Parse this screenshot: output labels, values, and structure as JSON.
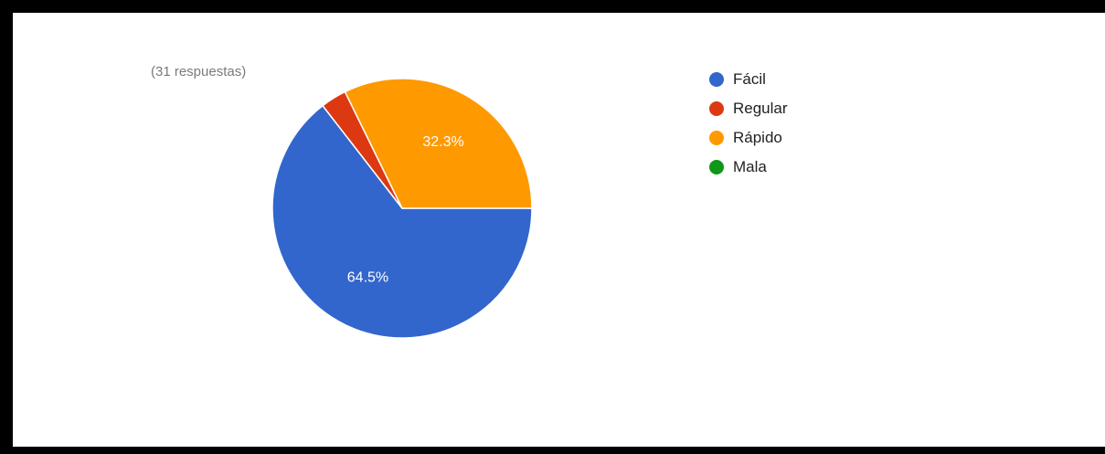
{
  "responses_text": "(31 respuestas)",
  "chart_data": {
    "type": "pie",
    "total_responses": 31,
    "slices": [
      {
        "name": "Fácil",
        "value": 20,
        "percent_label": "64.5%",
        "color": "#3366cc"
      },
      {
        "name": "Regular",
        "value": 1,
        "percent_label": "",
        "color": "#dc3912"
      },
      {
        "name": "Rápido",
        "value": 10,
        "percent_label": "32.3%",
        "color": "#ff9900"
      },
      {
        "name": "Mala",
        "value": 0,
        "percent_label": "",
        "color": "#109618"
      }
    ],
    "legend_position": "right"
  }
}
